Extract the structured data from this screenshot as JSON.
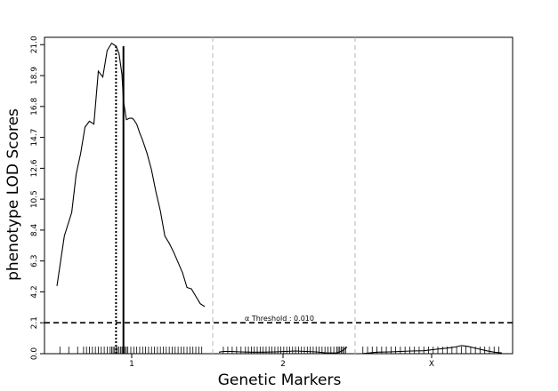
{
  "chart_data": {
    "type": "line",
    "title": "",
    "xlabel": "Genetic Markers",
    "ylabel": "phenotype LOD Scores",
    "ylim": [
      0,
      21.5
    ],
    "yticks": [
      "0.0",
      "2.1",
      "4.2",
      "6.3",
      "8.4",
      "10.5",
      "12.6",
      "14.7",
      "16.8",
      "18.9",
      "21.0"
    ],
    "chromosomes": [
      {
        "label": "1",
        "length": 100
      },
      {
        "label": "2",
        "length": 87
      },
      {
        "label": "X",
        "length": 90
      }
    ],
    "series": [
      {
        "chromosome": "1",
        "x": [
          0,
          5,
          10,
          13,
          16,
          19,
          22,
          25,
          28,
          31,
          34,
          37,
          40,
          42,
          44,
          45,
          47,
          49,
          51,
          52,
          54,
          56,
          58,
          61,
          64,
          67,
          70,
          73,
          76,
          79,
          82,
          85,
          88,
          91,
          94,
          97,
          100
        ],
        "y": [
          4.6,
          8.0,
          9.6,
          12.2,
          13.6,
          15.4,
          15.8,
          15.6,
          19.2,
          18.8,
          20.6,
          21.1,
          20.9,
          20.4,
          19.0,
          17.2,
          15.9,
          16.0,
          16.0,
          15.9,
          15.6,
          15.0,
          14.5,
          13.6,
          12.5,
          11.0,
          9.7,
          8.0,
          7.5,
          6.9,
          6.2,
          5.5,
          4.5,
          4.4,
          3.9,
          3.4,
          3.2
        ]
      },
      {
        "chromosome": "2",
        "x": [
          0,
          3,
          8,
          15,
          22,
          30,
          38,
          45,
          52,
          59,
          66,
          73,
          80,
          84,
          87
        ],
        "y": [
          0.1,
          0.15,
          0.15,
          0.12,
          0.1,
          0.1,
          0.12,
          0.15,
          0.18,
          0.15,
          0.12,
          0.05,
          0.05,
          0.2,
          0.45
        ]
      },
      {
        "chromosome": "X",
        "x": [
          0,
          5,
          10,
          18,
          25,
          32,
          40,
          48,
          55,
          60,
          64,
          68,
          72,
          76,
          80,
          85,
          90
        ],
        "y": [
          0.0,
          0.05,
          0.1,
          0.12,
          0.15,
          0.18,
          0.2,
          0.3,
          0.38,
          0.45,
          0.55,
          0.5,
          0.4,
          0.3,
          0.2,
          0.1,
          0.05
        ]
      }
    ],
    "markers": {
      "1": [
        2,
        8,
        14,
        18,
        20,
        22,
        24,
        26,
        28,
        30,
        32,
        34,
        36,
        37,
        38,
        39,
        40,
        41,
        42,
        43,
        44,
        45,
        46,
        47,
        48,
        50,
        52,
        54,
        56,
        58,
        60,
        62,
        64,
        66,
        68,
        70,
        72,
        74,
        76,
        78,
        80,
        82,
        84,
        86,
        88,
        90,
        92,
        94,
        96,
        98
      ],
      "2": [
        3,
        6,
        9,
        12,
        15,
        18,
        20,
        22,
        24,
        26,
        28,
        30,
        32,
        34,
        36,
        38,
        40,
        42,
        44,
        46,
        48,
        50,
        52,
        54,
        56,
        58,
        60,
        62,
        64,
        66,
        68,
        70,
        72,
        74,
        76,
        78,
        80,
        81,
        82,
        83,
        84,
        85,
        86
      ],
      "X": [
        1,
        4,
        7,
        10,
        13,
        16,
        19,
        22,
        25,
        28,
        31,
        34,
        37,
        40,
        43,
        46,
        49,
        52,
        55,
        58,
        61,
        64,
        67,
        70,
        73,
        76,
        79,
        82,
        85,
        88
      ]
    },
    "intervals": [
      {
        "chromosome": "1",
        "x": 40,
        "style": "dotted"
      },
      {
        "chromosome": "1",
        "x": 45,
        "style": "solid"
      }
    ],
    "threshold": {
      "value": 2.1,
      "label": "α Threshold : 0.010"
    }
  }
}
